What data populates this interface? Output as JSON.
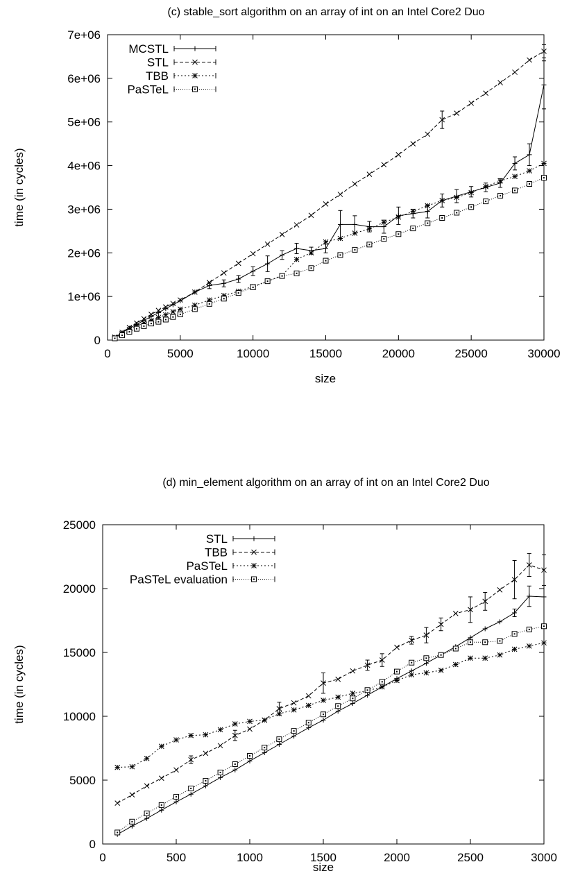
{
  "chart_data": [
    {
      "type": "line",
      "title": "(c) stable_sort algorithm on an array of int on an Intel Core2 Duo",
      "xlabel": "size",
      "ylabel": "time (in cycles)",
      "xlim": [
        0,
        30000
      ],
      "ylim": [
        0,
        7000000
      ],
      "xticks": [
        0,
        5000,
        10000,
        15000,
        20000,
        25000,
        30000
      ],
      "yticks": [
        0,
        1000000,
        2000000,
        3000000,
        4000000,
        5000000,
        6000000,
        7000000
      ],
      "xtick_labels": [
        "0",
        "5000",
        "10000",
        "15000",
        "20000",
        "25000",
        "30000"
      ],
      "ytick_labels": [
        "0",
        "1e+06",
        "2e+06",
        "3e+06",
        "4e+06",
        "5e+06",
        "6e+06",
        "7e+06"
      ],
      "legend_position": "top-left",
      "grid": false,
      "series": [
        {
          "name": "MCSTL",
          "style": "solid",
          "marker": "plus",
          "x": [
            500,
            1000,
            1500,
            2000,
            2500,
            3000,
            3500,
            4000,
            4500,
            5000,
            6000,
            7000,
            8000,
            9000,
            10000,
            11000,
            12000,
            13000,
            14000,
            15000,
            16000,
            17000,
            18000,
            19000,
            20000,
            21000,
            22000,
            23000,
            24000,
            25000,
            26000,
            27000,
            28000,
            29000,
            30000
          ],
          "y": [
            60000,
            170000,
            270000,
            360000,
            450000,
            540000,
            630000,
            720000,
            810000,
            900000,
            1100000,
            1250000,
            1300000,
            1400000,
            1580000,
            1750000,
            1950000,
            2100000,
            2050000,
            2100000,
            2650000,
            2650000,
            2600000,
            2600000,
            2850000,
            2900000,
            2950000,
            3200000,
            3300000,
            3400000,
            3500000,
            3600000,
            4050000,
            4250000,
            5850000
          ],
          "err": [
            0,
            0,
            0,
            0,
            0,
            0,
            0,
            0,
            0,
            0,
            0,
            70000,
            80000,
            80000,
            100000,
            180000,
            100000,
            120000,
            80000,
            100000,
            320000,
            200000,
            120000,
            150000,
            200000,
            100000,
            150000,
            150000,
            150000,
            120000,
            100000,
            100000,
            150000,
            250000,
            550000
          ]
        },
        {
          "name": "STL",
          "style": "dashed",
          "marker": "x",
          "x": [
            500,
            1000,
            1500,
            2000,
            2500,
            3000,
            3500,
            4000,
            4500,
            5000,
            6000,
            7000,
            8000,
            9000,
            10000,
            11000,
            12000,
            13000,
            14000,
            15000,
            16000,
            17000,
            18000,
            19000,
            20000,
            21000,
            22000,
            23000,
            24000,
            25000,
            26000,
            27000,
            28000,
            29000,
            30000
          ],
          "y": [
            70000,
            180000,
            290000,
            390000,
            490000,
            590000,
            680000,
            760000,
            840000,
            920000,
            1100000,
            1320000,
            1540000,
            1760000,
            1980000,
            2200000,
            2420000,
            2640000,
            2860000,
            3120000,
            3340000,
            3580000,
            3800000,
            4020000,
            4250000,
            4500000,
            4720000,
            5050000,
            5200000,
            5430000,
            5660000,
            5900000,
            6140000,
            6420000,
            6620000
          ],
          "err": [
            0,
            0,
            0,
            0,
            0,
            0,
            0,
            0,
            0,
            0,
            0,
            0,
            0,
            0,
            0,
            0,
            0,
            0,
            0,
            0,
            0,
            0,
            0,
            0,
            0,
            0,
            0,
            200000,
            0,
            0,
            0,
            0,
            0,
            0,
            150000
          ]
        },
        {
          "name": "TBB",
          "style": "dotted",
          "marker": "star",
          "x": [
            500,
            1000,
            1500,
            2000,
            2500,
            3000,
            3500,
            4000,
            4500,
            5000,
            6000,
            7000,
            8000,
            9000,
            10000,
            11000,
            12000,
            13000,
            14000,
            15000,
            16000,
            17000,
            18000,
            19000,
            20000,
            21000,
            22000,
            23000,
            24000,
            25000,
            26000,
            27000,
            28000,
            29000,
            30000
          ],
          "y": [
            50000,
            150000,
            240000,
            320000,
            390000,
            450000,
            520000,
            580000,
            650000,
            710000,
            800000,
            920000,
            1020000,
            1120000,
            1230000,
            1350000,
            1480000,
            1850000,
            2000000,
            2250000,
            2330000,
            2450000,
            2550000,
            2700000,
            2820000,
            2950000,
            3080000,
            3200000,
            3270000,
            3380000,
            3520000,
            3650000,
            3750000,
            3880000,
            4050000
          ],
          "err": [
            0,
            0,
            0,
            0,
            0,
            0,
            0,
            0,
            0,
            0,
            0,
            0,
            0,
            0,
            0,
            0,
            0,
            0,
            0,
            0,
            0,
            0,
            0,
            0,
            0,
            0,
            0,
            0,
            0,
            0,
            0,
            0,
            0,
            0,
            0
          ]
        },
        {
          "name": "PaSTeL",
          "style": "fine-dotted",
          "marker": "square",
          "x": [
            500,
            1000,
            1500,
            2000,
            2500,
            3000,
            3500,
            4000,
            4500,
            5000,
            6000,
            7000,
            8000,
            9000,
            10000,
            11000,
            12000,
            13000,
            14000,
            15000,
            16000,
            17000,
            18000,
            19000,
            20000,
            21000,
            22000,
            23000,
            24000,
            25000,
            26000,
            27000,
            28000,
            29000,
            30000
          ],
          "y": [
            40000,
            110000,
            190000,
            260000,
            320000,
            380000,
            420000,
            470000,
            530000,
            590000,
            710000,
            830000,
            950000,
            1080000,
            1210000,
            1350000,
            1470000,
            1530000,
            1650000,
            1820000,
            1950000,
            2070000,
            2190000,
            2320000,
            2430000,
            2560000,
            2680000,
            2800000,
            2920000,
            3050000,
            3180000,
            3310000,
            3430000,
            3580000,
            3720000
          ],
          "err": [
            0,
            0,
            0,
            0,
            0,
            0,
            0,
            0,
            0,
            0,
            0,
            0,
            0,
            0,
            0,
            0,
            0,
            0,
            0,
            0,
            0,
            0,
            0,
            0,
            0,
            0,
            0,
            0,
            0,
            0,
            0,
            0,
            0,
            0,
            0
          ]
        }
      ]
    },
    {
      "type": "line",
      "title": "(d) min_element algorithm on an array of int on an Intel Core2 Duo",
      "xlabel": "size",
      "ylabel": "time (in cycles)",
      "xlim": [
        0,
        3000
      ],
      "ylim": [
        0,
        25000
      ],
      "xticks": [
        0,
        500,
        1000,
        1500,
        2000,
        2500,
        3000
      ],
      "yticks": [
        0,
        5000,
        10000,
        15000,
        20000,
        25000
      ],
      "xtick_labels": [
        "0",
        "500",
        "1000",
        "1500",
        "2000",
        "2500",
        "3000"
      ],
      "ytick_labels": [
        "0",
        "5000",
        "10000",
        "15000",
        "20000",
        "25000"
      ],
      "legend_position": "top-center",
      "grid": false,
      "series": [
        {
          "name": "STL",
          "style": "solid",
          "marker": "plus",
          "x": [
            100,
            200,
            300,
            400,
            500,
            600,
            700,
            800,
            900,
            1000,
            1100,
            1200,
            1300,
            1400,
            1500,
            1600,
            1700,
            1800,
            1900,
            2000,
            2100,
            2200,
            2300,
            2400,
            2500,
            2600,
            2700,
            2800,
            2900,
            3000
          ],
          "y": [
            750,
            1400,
            2000,
            2650,
            3300,
            3900,
            4550,
            5200,
            5800,
            6500,
            7150,
            7800,
            8450,
            9100,
            9700,
            10400,
            11000,
            11650,
            12300,
            12950,
            13550,
            14150,
            14800,
            15450,
            16150,
            16850,
            17400,
            18100,
            19400,
            19350
          ],
          "err": [
            0,
            0,
            0,
            0,
            0,
            0,
            0,
            0,
            0,
            0,
            0,
            0,
            0,
            0,
            0,
            0,
            0,
            0,
            0,
            0,
            0,
            0,
            0,
            0,
            0,
            0,
            0,
            300,
            800,
            0
          ]
        },
        {
          "name": "TBB",
          "style": "dashed",
          "marker": "x",
          "x": [
            100,
            200,
            300,
            400,
            500,
            600,
            700,
            800,
            900,
            1000,
            1100,
            1200,
            1300,
            1400,
            1500,
            1600,
            1700,
            1800,
            1900,
            2000,
            2100,
            2200,
            2300,
            2400,
            2500,
            2600,
            2700,
            2800,
            2900,
            3000
          ],
          "y": [
            3200,
            3850,
            4550,
            5150,
            5800,
            6600,
            7100,
            7700,
            8500,
            9000,
            9700,
            10600,
            11050,
            11600,
            12600,
            12900,
            13550,
            14000,
            14400,
            15400,
            15950,
            16350,
            17200,
            18050,
            18350,
            19000,
            19900,
            20700,
            21850,
            21450
          ],
          "err": [
            0,
            0,
            0,
            0,
            0,
            300,
            0,
            0,
            400,
            0,
            0,
            500,
            0,
            0,
            800,
            0,
            0,
            400,
            500,
            0,
            300,
            600,
            500,
            0,
            1000,
            700,
            0,
            1500,
            900,
            1200
          ]
        },
        {
          "name": "PaSTeL",
          "style": "dotted",
          "marker": "star",
          "x": [
            100,
            200,
            300,
            400,
            500,
            600,
            700,
            800,
            900,
            1000,
            1100,
            1200,
            1300,
            1400,
            1500,
            1600,
            1700,
            1800,
            1900,
            2000,
            2100,
            2200,
            2300,
            2400,
            2500,
            2600,
            2700,
            2800,
            2900,
            3000
          ],
          "y": [
            6000,
            6050,
            6700,
            7650,
            8150,
            8500,
            8550,
            8950,
            9400,
            9600,
            9700,
            10200,
            10500,
            10850,
            11250,
            11500,
            11800,
            12000,
            12300,
            12800,
            13250,
            13400,
            13600,
            14050,
            14550,
            14550,
            14800,
            15250,
            15500,
            15750
          ],
          "err": [
            0,
            0,
            0,
            0,
            0,
            0,
            0,
            0,
            0,
            0,
            0,
            0,
            0,
            0,
            0,
            0,
            0,
            0,
            0,
            0,
            0,
            0,
            0,
            0,
            0,
            0,
            0,
            0,
            0,
            0
          ]
        },
        {
          "name": "PaSTeL evaluation",
          "style": "fine-dotted",
          "marker": "square",
          "x": [
            100,
            200,
            300,
            400,
            500,
            600,
            700,
            800,
            900,
            1000,
            1100,
            1200,
            1300,
            1400,
            1500,
            1600,
            1700,
            1800,
            1900,
            2000,
            2100,
            2200,
            2300,
            2400,
            2500,
            2600,
            2700,
            2800,
            2900,
            3000
          ],
          "y": [
            900,
            1750,
            2400,
            3050,
            3700,
            4350,
            4950,
            5600,
            6250,
            6900,
            7550,
            8200,
            8850,
            9500,
            10150,
            10800,
            11400,
            12050,
            12700,
            13500,
            14200,
            14550,
            14800,
            15300,
            15800,
            15800,
            15900,
            16450,
            16800,
            17050
          ],
          "err": [
            0,
            0,
            0,
            0,
            0,
            0,
            0,
            0,
            0,
            0,
            0,
            0,
            0,
            0,
            0,
            0,
            0,
            0,
            0,
            0,
            0,
            0,
            0,
            0,
            0,
            0,
            0,
            0,
            0,
            0
          ]
        }
      ]
    }
  ]
}
